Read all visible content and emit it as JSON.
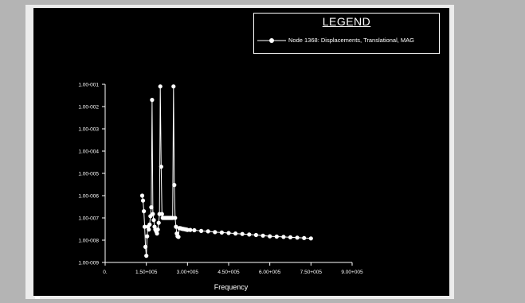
{
  "chart_data": {
    "type": "line",
    "title": "",
    "xlabel": "Frequency",
    "ylabel": "",
    "x_scale": "linear",
    "y_scale": "log",
    "xlim": [
      0,
      900000
    ],
    "ylim": [
      1e-09,
      0.1
    ],
    "x_ticks": [
      {
        "value": 0,
        "label": "0."
      },
      {
        "value": 150000,
        "label": "1.50+005"
      },
      {
        "value": 300000,
        "label": "3.00+005"
      },
      {
        "value": 450000,
        "label": "4.50+005"
      },
      {
        "value": 600000,
        "label": "6.00+005"
      },
      {
        "value": 750000,
        "label": "7.50+005"
      },
      {
        "value": 900000,
        "label": "9.00+005"
      }
    ],
    "y_ticks": [
      {
        "value": 1e-09,
        "label": "1.00-009"
      },
      {
        "value": 1e-08,
        "label": "1.00-008"
      },
      {
        "value": 1e-07,
        "label": "1.00-007"
      },
      {
        "value": 1e-06,
        "label": "1.00-006"
      },
      {
        "value": 1e-05,
        "label": "1.00-005"
      },
      {
        "value": 0.0001,
        "label": "1.00-004"
      },
      {
        "value": 0.001,
        "label": "1.00-003"
      },
      {
        "value": 0.01,
        "label": "1.00-002"
      },
      {
        "value": 0.1,
        "label": "1.00-001"
      }
    ],
    "grid": false,
    "legend": {
      "title": "LEGEND",
      "position": "top-right"
    },
    "series": [
      {
        "name": "Node 1368: Displacements, Translational, MAG",
        "color": "#ffffff",
        "marker": "circle",
        "x": [
          135000,
          138000,
          141000,
          144000,
          147000,
          150000,
          153000,
          156000,
          159000,
          162000,
          165000,
          168000,
          171000,
          174000,
          177000,
          180000,
          183000,
          186000,
          189000,
          192000,
          195000,
          198000,
          201000,
          204000,
          207000,
          210000,
          213000,
          216000,
          219000,
          222000,
          225000,
          228000,
          231000,
          234000,
          237000,
          240000,
          243000,
          246000,
          249000,
          252000,
          255000,
          258000,
          261000,
          264000,
          267000,
          270000,
          273000,
          276000,
          279000,
          282000,
          285000,
          288000,
          291000,
          294000,
          297000,
          300000,
          310000,
          325000,
          350000,
          375000,
          400000,
          425000,
          450000,
          475000,
          500000,
          525000,
          550000,
          575000,
          600000,
          625000,
          650000,
          675000,
          700000,
          725000,
          750000
        ],
        "y": [
          1e-06,
          6e-07,
          2e-07,
          4e-08,
          5e-09,
          2e-09,
          1.5e-08,
          4e-08,
          3e-08,
          5e-08,
          1.2e-07,
          3e-07,
          0.02,
          1.5e-07,
          8e-08,
          4e-08,
          3e-08,
          2.5e-08,
          2e-08,
          3e-08,
          6e-08,
          1.5e-07,
          0.08,
          2e-05,
          1.5e-07,
          1e-07,
          1e-07,
          1e-07,
          1e-07,
          1e-07,
          1e-07,
          1e-07,
          1e-07,
          1e-07,
          1e-07,
          1e-07,
          1e-07,
          1e-07,
          0.08,
          3e-06,
          1e-07,
          4e-08,
          2e-08,
          1.5e-08,
          1.4e-08,
          3.5e-08,
          3.5e-08,
          3.4e-08,
          3.3e-08,
          3.2e-08,
          3.2e-08,
          3.1e-08,
          3.1e-08,
          3e-08,
          3e-08,
          2.9e-08,
          2.9e-08,
          2.8e-08,
          2.6e-08,
          2.5e-08,
          2.3e-08,
          2.2e-08,
          2.1e-08,
          2e-08,
          1.9e-08,
          1.8e-08,
          1.7e-08,
          1.6e-08,
          1.5e-08,
          1.45e-08,
          1.4e-08,
          1.35e-08,
          1.3e-08,
          1.25e-08,
          1.2e-08
        ]
      }
    ]
  }
}
